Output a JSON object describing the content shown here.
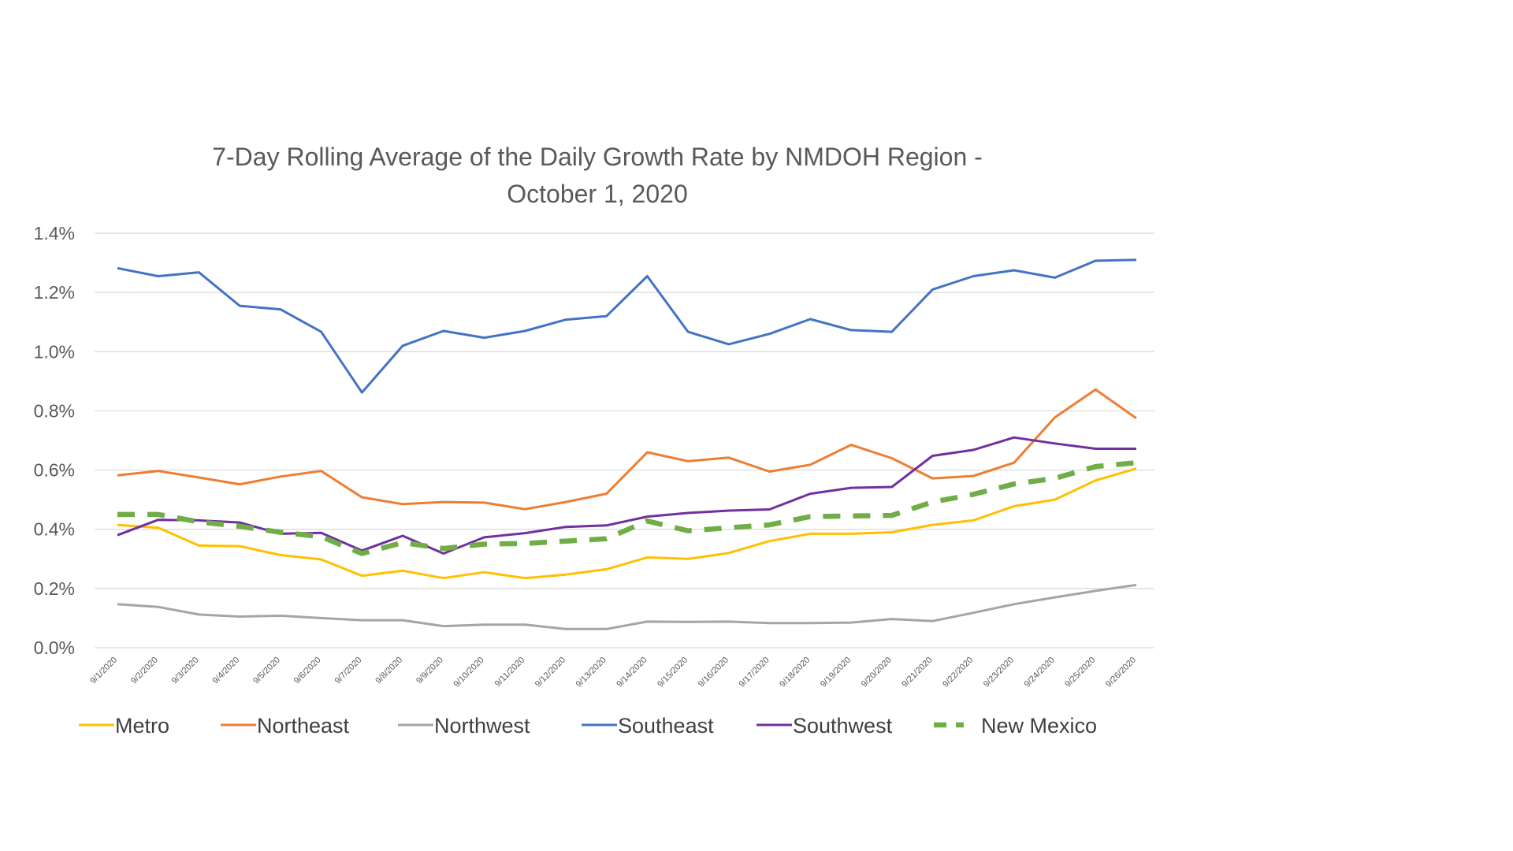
{
  "chart_data": {
    "type": "line",
    "title_lines": [
      "7-Day Rolling Average of the Daily Growth Rate by NMDOH Region -",
      "October 1, 2020"
    ],
    "xlabel": "",
    "ylabel": "",
    "ylim": [
      0,
      0.014
    ],
    "yticks": [
      0,
      0.002,
      0.004,
      0.006,
      0.008,
      0.01,
      0.012,
      0.014
    ],
    "ytick_labels": [
      "0.0%",
      "0.2%",
      "0.4%",
      "0.6%",
      "0.8%",
      "1.0%",
      "1.2%",
      "1.4%"
    ],
    "grid": "horizontal",
    "legend_position": "bottom",
    "categories": [
      "9/1/2020",
      "9/2/2020",
      "9/3/2020",
      "9/4/2020",
      "9/5/2020",
      "9/6/2020",
      "9/7/2020",
      "9/8/2020",
      "9/9/2020",
      "9/10/2020",
      "9/11/2020",
      "9/12/2020",
      "9/13/2020",
      "9/14/2020",
      "9/15/2020",
      "9/16/2020",
      "9/17/2020",
      "9/18/2020",
      "9/19/2020",
      "9/20/2020",
      "9/21/2020",
      "9/22/2020",
      "9/23/2020",
      "9/24/2020",
      "9/25/2020",
      "9/26/2020"
    ],
    "series": [
      {
        "name": "Metro",
        "color": "#FFC000",
        "dashed": false,
        "values": [
          0.00415,
          0.00405,
          0.00345,
          0.00343,
          0.00313,
          0.00298,
          0.00243,
          0.0026,
          0.00235,
          0.00255,
          0.00235,
          0.00247,
          0.00265,
          0.00305,
          0.003,
          0.0032,
          0.0036,
          0.00385,
          0.00385,
          0.0039,
          0.00415,
          0.0043,
          0.00478,
          0.005,
          0.00565,
          0.00605
        ]
      },
      {
        "name": "Northeast",
        "color": "#ED7D31",
        "dashed": false,
        "values": [
          0.00582,
          0.00597,
          0.00575,
          0.00552,
          0.00578,
          0.00597,
          0.00508,
          0.00485,
          0.00492,
          0.0049,
          0.00468,
          0.00492,
          0.0052,
          0.0066,
          0.0063,
          0.00642,
          0.00595,
          0.00618,
          0.00685,
          0.0064,
          0.00572,
          0.0058,
          0.00625,
          0.00778,
          0.00872,
          0.00775
        ]
      },
      {
        "name": "Northwest",
        "color": "#A5A5A5",
        "dashed": false,
        "values": [
          0.00147,
          0.00138,
          0.00112,
          0.00105,
          0.00108,
          0.001,
          0.00093,
          0.00093,
          0.00073,
          0.00078,
          0.00078,
          0.00063,
          0.00063,
          0.00088,
          0.00087,
          0.00088,
          0.00083,
          0.00083,
          0.00085,
          0.00097,
          0.0009,
          0.00118,
          0.00147,
          0.0017,
          0.00192,
          0.00212
        ]
      },
      {
        "name": "Southeast",
        "color": "#4472C4",
        "dashed": false,
        "values": [
          0.01282,
          0.01255,
          0.01268,
          0.01155,
          0.01143,
          0.01067,
          0.00862,
          0.0102,
          0.0107,
          0.01047,
          0.0107,
          0.01108,
          0.0112,
          0.01255,
          0.01067,
          0.01025,
          0.0106,
          0.0111,
          0.01073,
          0.01067,
          0.0121,
          0.01255,
          0.01275,
          0.0125,
          0.01307,
          0.0131
        ]
      },
      {
        "name": "Southwest",
        "color": "#7030A0",
        "dashed": false,
        "values": [
          0.0038,
          0.00432,
          0.0043,
          0.00423,
          0.00385,
          0.00388,
          0.00328,
          0.00378,
          0.00318,
          0.00373,
          0.00387,
          0.00408,
          0.00413,
          0.00443,
          0.00455,
          0.00463,
          0.00467,
          0.0052,
          0.0054,
          0.00543,
          0.00648,
          0.00668,
          0.0071,
          0.0069,
          0.00672,
          0.00672
        ]
      },
      {
        "name": "New Mexico",
        "color": "#70AD47",
        "dashed": true,
        "values": [
          0.0045,
          0.0045,
          0.00425,
          0.0041,
          0.0039,
          0.00375,
          0.00318,
          0.00355,
          0.00335,
          0.0035,
          0.00352,
          0.0036,
          0.00368,
          0.00428,
          0.00395,
          0.00405,
          0.00415,
          0.00443,
          0.00445,
          0.00447,
          0.00492,
          0.00518,
          0.00553,
          0.00572,
          0.00612,
          0.00625
        ]
      }
    ]
  }
}
